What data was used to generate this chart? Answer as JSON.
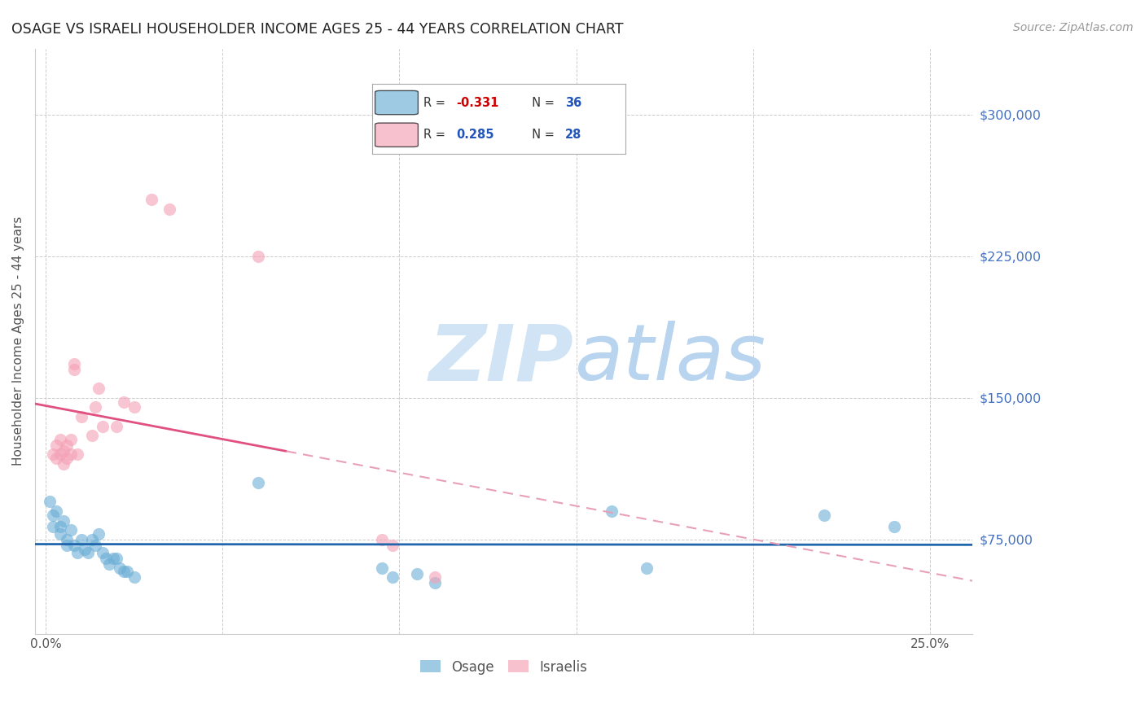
{
  "title": "OSAGE VS ISRAELI HOUSEHOLDER INCOME AGES 25 - 44 YEARS CORRELATION CHART",
  "source": "Source: ZipAtlas.com",
  "ylabel": "Householder Income Ages 25 - 44 years",
  "xlabel_ticks": [
    "0.0%",
    "25.0%"
  ],
  "xlabel_vals": [
    0.0,
    0.25
  ],
  "ylabel_ticks": [
    "$75,000",
    "$150,000",
    "$225,000",
    "$300,000"
  ],
  "ylabel_vals": [
    75000,
    150000,
    225000,
    300000
  ],
  "xlim": [
    -0.003,
    0.262
  ],
  "ylim": [
    25000,
    335000
  ],
  "osage_color": "#6baed6",
  "israeli_color": "#f4a0b5",
  "osage_trendline_color": "#2166ac",
  "israeli_trendline_solid_color": "#e05080",
  "israeli_trendline_dashed_color": "#e8a0b8",
  "background_color": "#ffffff",
  "grid_color": "#cccccc",
  "right_label_color": "#4472c4",
  "watermark_zip_color": "#d0e4f5",
  "watermark_atlas_color": "#b8d4ee",
  "osage_marker_size": 120,
  "israeli_marker_size": 120,
  "osage_x": [
    0.001,
    0.002,
    0.002,
    0.003,
    0.004,
    0.004,
    0.005,
    0.006,
    0.006,
    0.007,
    0.008,
    0.009,
    0.01,
    0.011,
    0.012,
    0.013,
    0.014,
    0.015,
    0.016,
    0.017,
    0.018,
    0.019,
    0.02,
    0.021,
    0.022,
    0.023,
    0.025,
    0.06,
    0.095,
    0.098,
    0.105,
    0.11,
    0.16,
    0.17,
    0.22,
    0.24
  ],
  "osage_y": [
    95000,
    88000,
    82000,
    90000,
    82000,
    78000,
    85000,
    75000,
    72000,
    80000,
    72000,
    68000,
    75000,
    70000,
    68000,
    75000,
    72000,
    78000,
    68000,
    65000,
    62000,
    65000,
    65000,
    60000,
    58000,
    58000,
    55000,
    105000,
    60000,
    55000,
    57000,
    52000,
    90000,
    60000,
    88000,
    82000
  ],
  "israeli_x": [
    0.002,
    0.003,
    0.003,
    0.004,
    0.004,
    0.005,
    0.005,
    0.006,
    0.006,
    0.007,
    0.007,
    0.008,
    0.008,
    0.009,
    0.01,
    0.013,
    0.014,
    0.015,
    0.016,
    0.02,
    0.022,
    0.025,
    0.03,
    0.035,
    0.06,
    0.095,
    0.098,
    0.11
  ],
  "israeli_y": [
    120000,
    125000,
    118000,
    128000,
    120000,
    122000,
    115000,
    125000,
    118000,
    128000,
    120000,
    165000,
    168000,
    120000,
    140000,
    130000,
    145000,
    155000,
    135000,
    135000,
    148000,
    145000,
    255000,
    250000,
    225000,
    75000,
    72000,
    55000
  ]
}
